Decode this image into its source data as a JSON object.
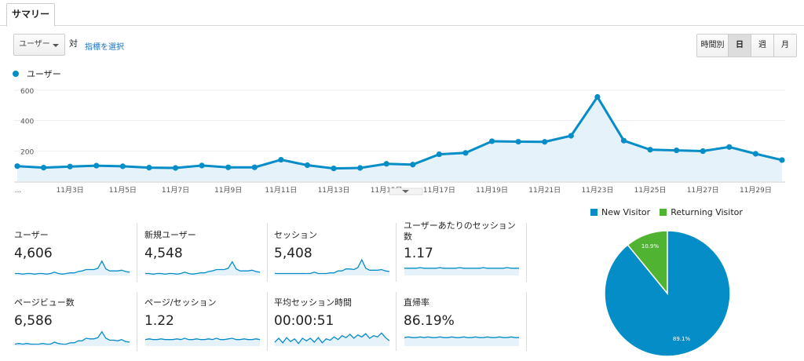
{
  "tab": {
    "summary": "サマリー"
  },
  "toolbar": {
    "metric_select": "ユーザー",
    "vs": "対",
    "pick_metric": "指標を選択"
  },
  "period_buttons": [
    "時間別",
    "日",
    "週",
    "月"
  ],
  "period_active": "日",
  "legend_label": "ユーザー",
  "colors": {
    "primary": "#058dc7",
    "secondary": "#50b432",
    "area": "#e6f2fa",
    "grid": "#eeeeee"
  },
  "chart_data": [
    {
      "type": "line",
      "series": [
        {
          "name": "ユーザー",
          "values": [
            100,
            90,
            97,
            103,
            99,
            90,
            88,
            104,
            92,
            92,
            142,
            106,
            85,
            88,
            115,
            110,
            178,
            187,
            264,
            261,
            260,
            300,
            556,
            268,
            208,
            204,
            199,
            226,
            181,
            140
          ]
        }
      ],
      "x_tick_labels": [
        "...",
        "11月3日",
        "11月5日",
        "11月7日",
        "11月9日",
        "11月11日",
        "11月13日",
        "11月15日",
        "11月17日",
        "11月19日",
        "11月21日",
        "11月23日",
        "11月25日",
        "11月27日",
        "11月29日"
      ],
      "y_tick_labels": [
        "600",
        "400",
        "200"
      ],
      "ylim": [
        0,
        600
      ]
    },
    {
      "type": "pie",
      "labels": [
        "New Visitor",
        "Returning Visitor"
      ],
      "values": [
        89.1,
        10.9
      ],
      "slice_labels": [
        "89.1%",
        "10.9%"
      ],
      "legend": "top"
    }
  ],
  "scorecards": [
    {
      "label": "ユーザー",
      "value": "4,606",
      "spark": [
        3,
        3,
        2,
        3,
        3,
        2,
        3,
        3,
        2,
        3,
        5,
        3,
        2,
        3,
        4,
        4,
        6,
        7,
        9,
        9,
        9,
        11,
        22,
        10,
        7,
        7,
        7,
        8,
        6,
        5
      ]
    },
    {
      "label": "新規ユーザー",
      "value": "4,548",
      "spark": [
        3,
        3,
        2,
        3,
        3,
        2,
        3,
        3,
        2,
        3,
        5,
        3,
        2,
        3,
        4,
        4,
        6,
        7,
        9,
        9,
        9,
        11,
        21,
        10,
        7,
        7,
        7,
        8,
        6,
        5
      ]
    },
    {
      "label": "セッション",
      "value": "5,408",
      "spark": [
        3,
        3,
        3,
        3,
        3,
        3,
        3,
        3,
        3,
        3,
        5,
        3,
        3,
        3,
        4,
        4,
        7,
        7,
        10,
        10,
        9,
        12,
        24,
        11,
        8,
        8,
        8,
        9,
        7,
        6
      ]
    },
    {
      "label": "ユーザーあたりのセッション数",
      "value": "1.17",
      "spark": [
        11,
        11,
        11,
        11,
        12,
        11,
        11,
        11,
        11,
        12,
        11,
        11,
        11,
        11,
        12,
        11,
        11,
        11,
        11,
        11,
        12,
        11,
        11,
        11,
        11,
        11,
        12,
        11,
        11,
        11
      ]
    },
    {
      "label": "ページビュー数",
      "value": "6,586",
      "spark": [
        3,
        4,
        3,
        4,
        3,
        3,
        3,
        4,
        3,
        3,
        6,
        4,
        3,
        3,
        5,
        5,
        8,
        8,
        12,
        11,
        11,
        13,
        22,
        12,
        9,
        9,
        8,
        10,
        7,
        6
      ]
    },
    {
      "label": "ページ/セッション",
      "value": "1.22",
      "spark": [
        10,
        11,
        10,
        10,
        11,
        10,
        10,
        10,
        11,
        10,
        12,
        10,
        10,
        11,
        10,
        10,
        11,
        10,
        12,
        10,
        10,
        11,
        12,
        10,
        10,
        11,
        10,
        10,
        11,
        10
      ]
    },
    {
      "label": "平均セッション時間",
      "value": "00:00:51",
      "spark": [
        6,
        12,
        5,
        13,
        7,
        11,
        4,
        12,
        8,
        12,
        6,
        13,
        5,
        11,
        9,
        14,
        10,
        16,
        13,
        18,
        12,
        17,
        14,
        19,
        12,
        16,
        14,
        20,
        13,
        8
      ]
    },
    {
      "label": "直帰率",
      "value": "86.19%",
      "spark": [
        13,
        14,
        13,
        13,
        14,
        13,
        14,
        13,
        13,
        14,
        13,
        13,
        14,
        13,
        13,
        14,
        13,
        13,
        14,
        13,
        13,
        14,
        13,
        13,
        14,
        13,
        13,
        14,
        13,
        13
      ]
    }
  ]
}
